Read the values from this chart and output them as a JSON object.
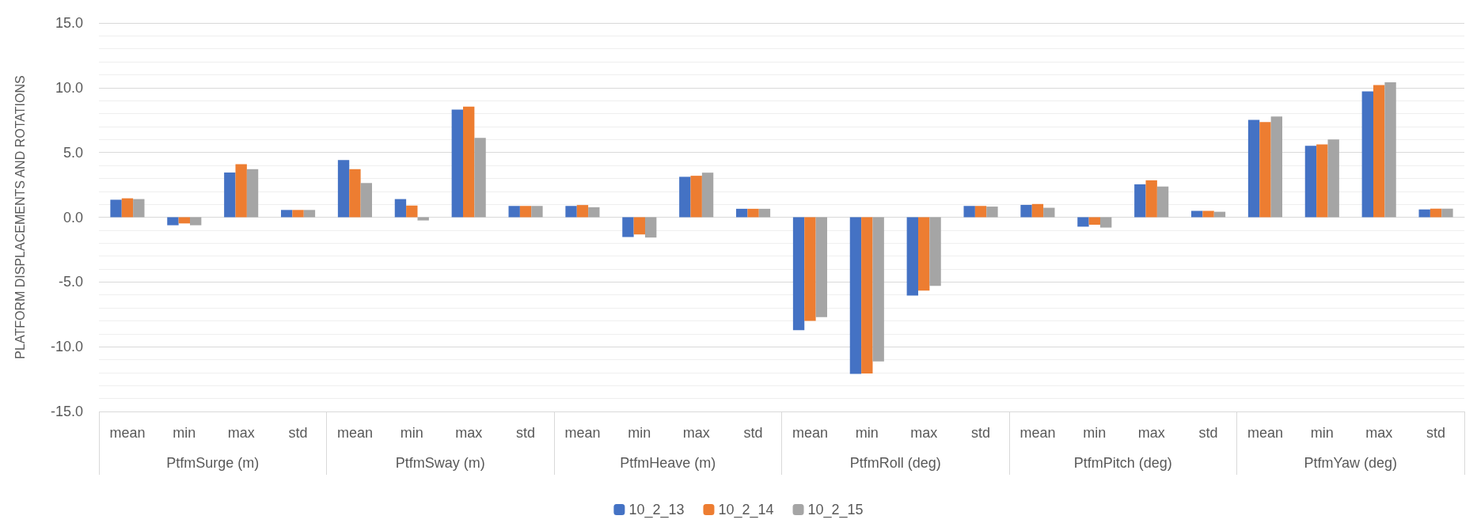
{
  "chart_data": {
    "type": "bar",
    "ylabel": "PLATFORM DISPLACEMENTS AND ROTATIONS",
    "categories": [
      "mean",
      "min",
      "max",
      "std",
      "mean",
      "min",
      "max",
      "std",
      "mean",
      "min",
      "max",
      "std",
      "mean",
      "min",
      "max",
      "std",
      "mean",
      "min",
      "max",
      "std",
      "mean",
      "min",
      "max",
      "std"
    ],
    "annotations": [
      "PtfmSurge (m)",
      "PtfmSway (m)",
      "PtfmHeave (m)",
      "PtfmRoll (deg)",
      "PtfmPitch (deg)",
      "PtfmYaw (deg)"
    ],
    "series": [
      {
        "name": "10_2_13",
        "color": "#4472c4",
        "values": [
          1.35,
          -0.62,
          3.45,
          0.56,
          4.41,
          1.4,
          8.31,
          0.87,
          0.87,
          -1.53,
          3.12,
          0.65,
          -8.72,
          -12.1,
          -6.05,
          0.87,
          0.95,
          -0.73,
          2.54,
          0.49,
          7.52,
          5.51,
          9.71,
          0.6
        ]
      },
      {
        "name": "10_2_14",
        "color": "#ed7d31",
        "values": [
          1.46,
          -0.48,
          4.1,
          0.56,
          3.71,
          0.9,
          8.54,
          0.87,
          0.94,
          -1.33,
          3.2,
          0.65,
          -8.01,
          -12.06,
          -5.67,
          0.87,
          1.02,
          -0.58,
          2.85,
          0.49,
          7.35,
          5.62,
          10.2,
          0.66
        ]
      },
      {
        "name": "10_2_15",
        "color": "#a5a5a5",
        "values": [
          1.4,
          -0.62,
          3.71,
          0.56,
          2.64,
          -0.25,
          6.12,
          0.87,
          0.77,
          -1.57,
          3.44,
          0.65,
          -7.72,
          -11.14,
          -5.3,
          0.82,
          0.73,
          -0.8,
          2.37,
          0.42,
          7.77,
          6.0,
          10.42,
          0.66
        ]
      }
    ],
    "ylim": [
      -15,
      15
    ],
    "yticks": [
      {
        "value": -15,
        "label": "-15.0"
      },
      {
        "value": -10,
        "label": "-10.0"
      },
      {
        "value": -5,
        "label": "-5.0"
      },
      {
        "value": 0,
        "label": "0.0"
      },
      {
        "value": 5,
        "label": "5.0"
      },
      {
        "value": 10,
        "label": "10.0"
      },
      {
        "value": 15,
        "label": "15.0"
      }
    ],
    "grid": true,
    "legend": "bottom"
  }
}
